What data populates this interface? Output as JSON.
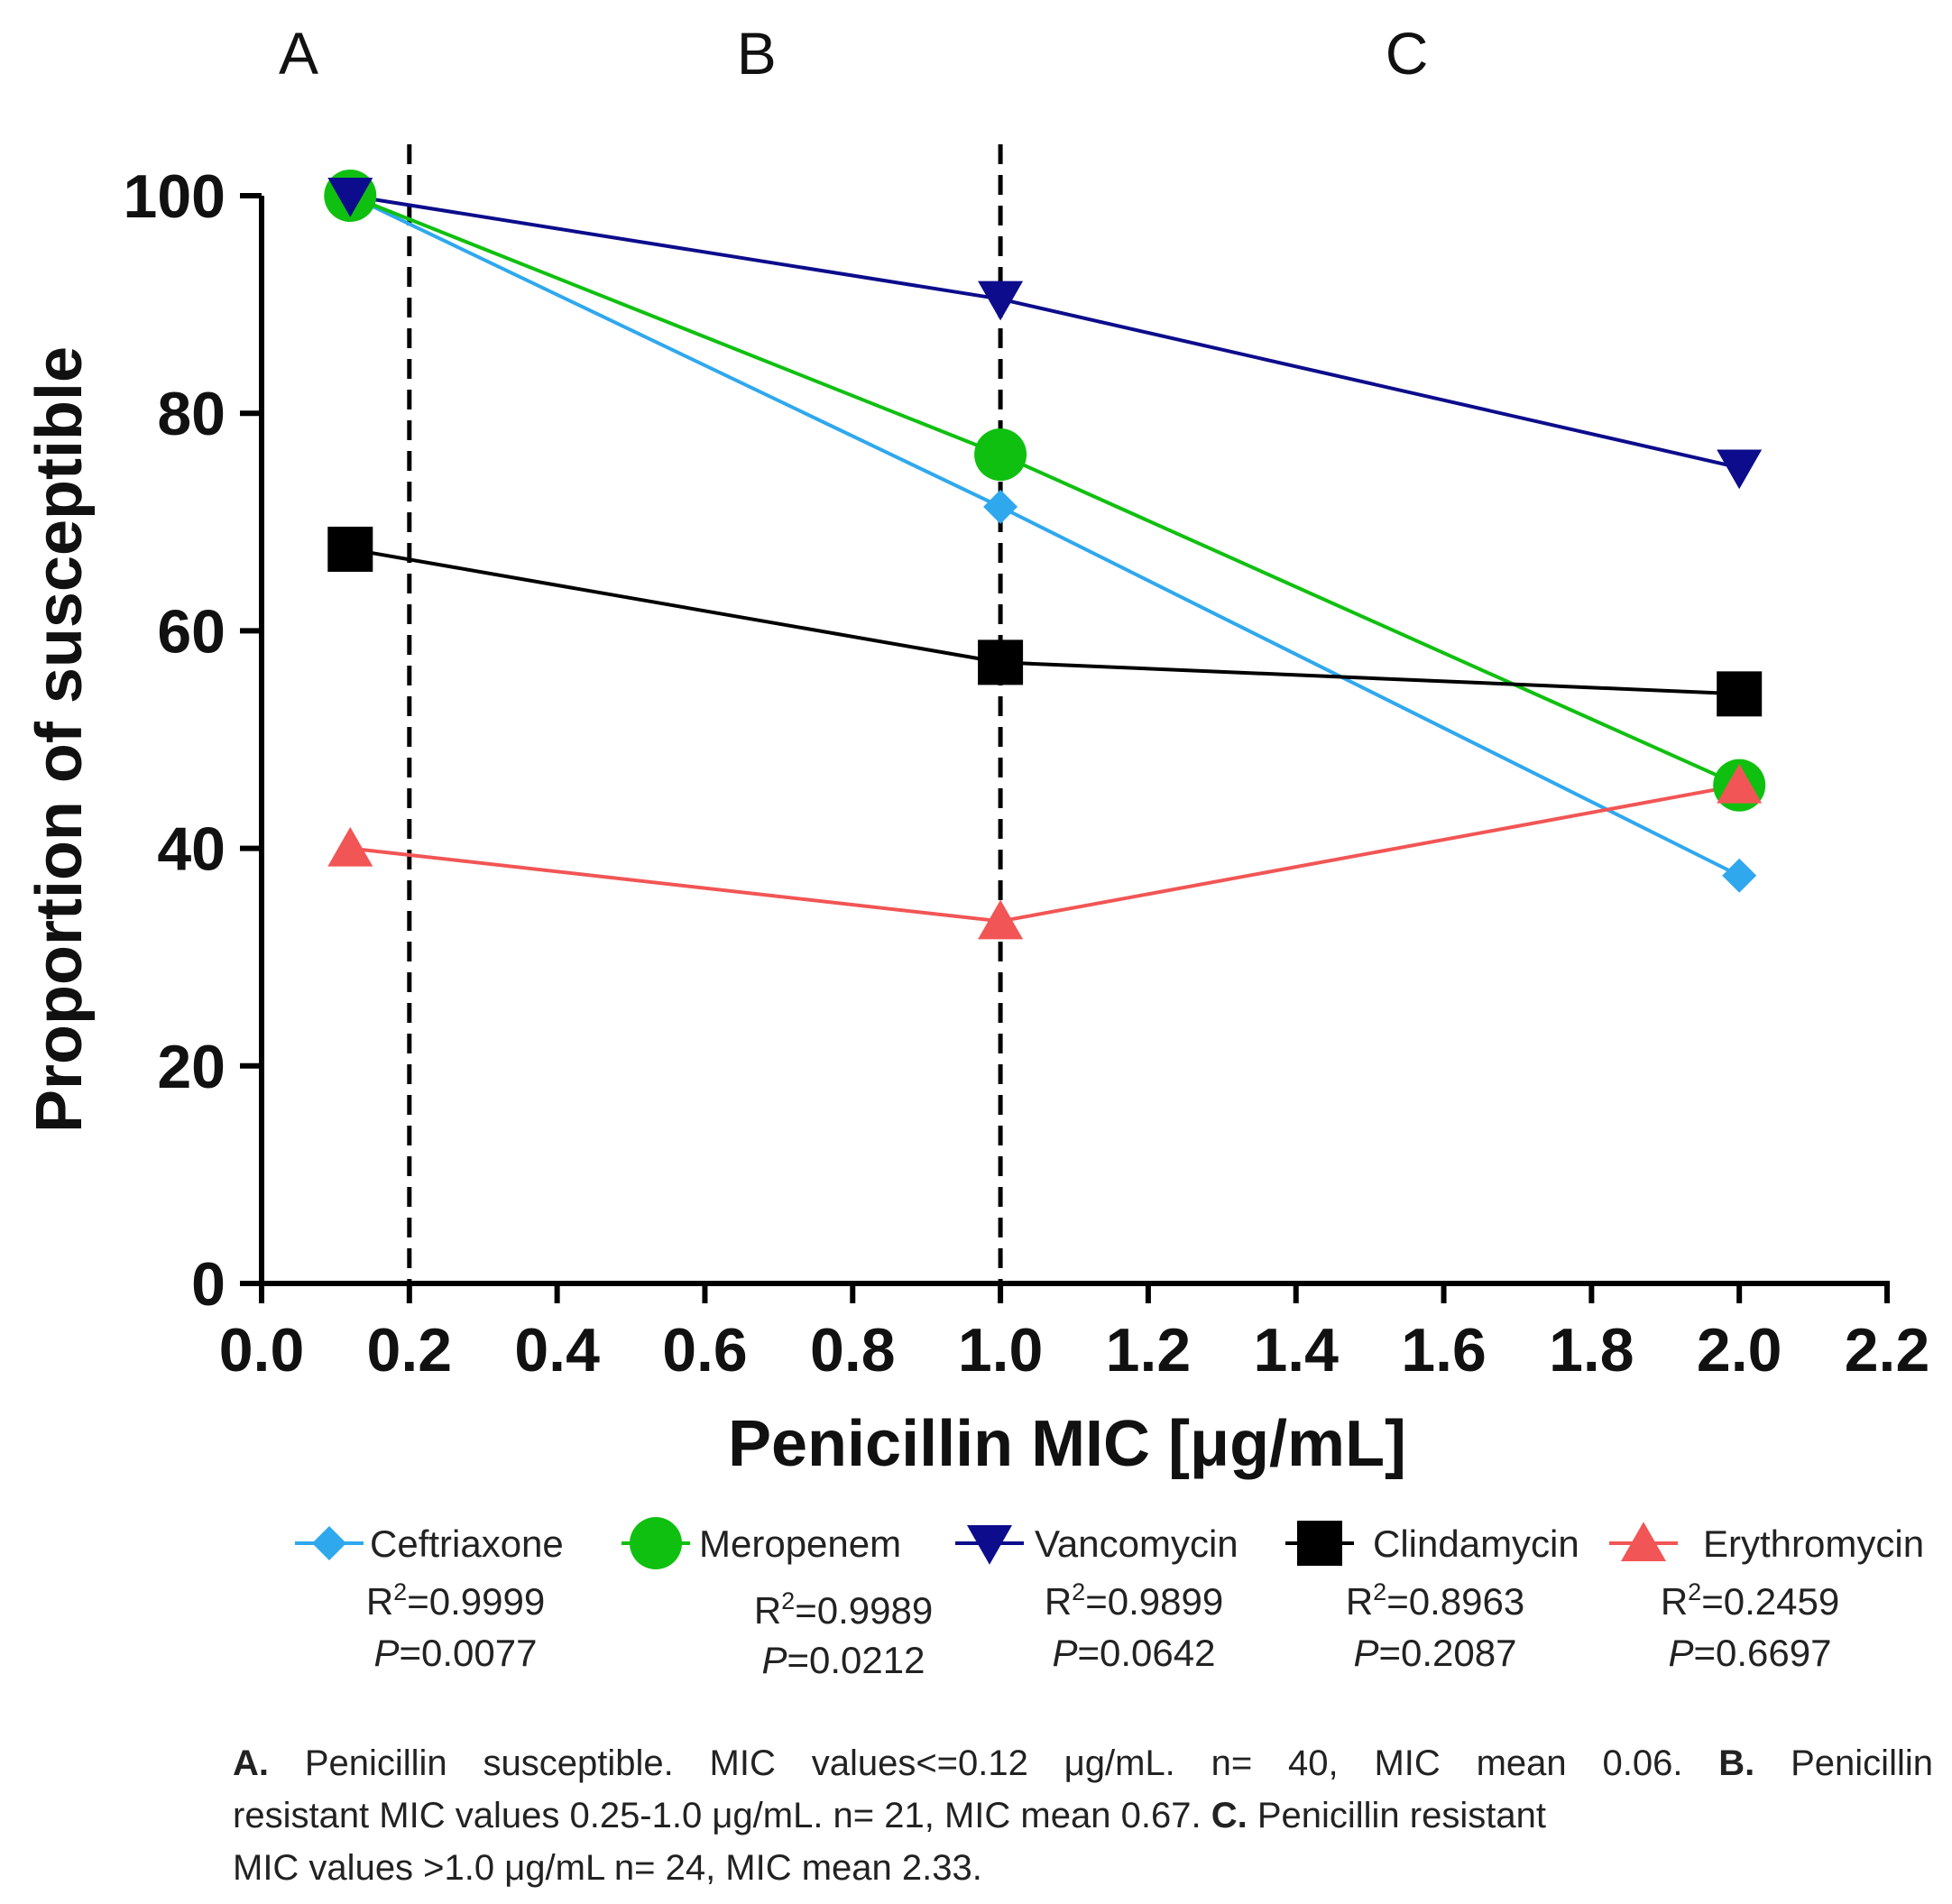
{
  "chart_data": {
    "type": "line",
    "xlabel": "Penicillin MIC [μg/mL]",
    "ylabel": "Proportion of susceptible",
    "xlim": [
      0.0,
      2.2
    ],
    "ylim": [
      0,
      100
    ],
    "x_ticks": [
      "0.0",
      "0.2",
      "0.4",
      "0.6",
      "0.8",
      "1.0",
      "1.2",
      "1.4",
      "1.6",
      "1.8",
      "2.0",
      "2.2"
    ],
    "y_ticks": [
      "0",
      "20",
      "40",
      "60",
      "80",
      "100"
    ],
    "region_boundaries": [
      0.2,
      1.0
    ],
    "region_labels": [
      {
        "label": "A",
        "x": 0.05
      },
      {
        "label": "B",
        "x": 0.67
      },
      {
        "label": "C",
        "x": 1.55
      }
    ],
    "x": [
      0.12,
      1.0,
      2.0
    ],
    "series": [
      {
        "name": "Ceftriaxone",
        "marker": "diamond",
        "color": "#2fa8ee",
        "values": [
          100,
          71.4,
          37.5
        ],
        "r2": "0.9999",
        "p": "0.0077"
      },
      {
        "name": "Meropenem",
        "marker": "circle",
        "color": "#10c010",
        "values": [
          100,
          76.2,
          45.8
        ],
        "r2": "0.9989",
        "p": "0.0212"
      },
      {
        "name": "Vancomycin",
        "marker": "triangle-down",
        "color": "#0c0c8c",
        "values": [
          100,
          90.5,
          75.0
        ],
        "r2": "0.9899",
        "p": "0.0642"
      },
      {
        "name": "Clindamycin",
        "marker": "square",
        "color": "#000000",
        "values": [
          67.5,
          57.1,
          54.2
        ],
        "r2": "0.8963",
        "p": "0.2087"
      },
      {
        "name": "Erythromycin",
        "marker": "triangle-up",
        "color": "#f25555",
        "values": [
          40.0,
          33.3,
          45.8
        ],
        "r2": "0.2459",
        "p": "0.6697"
      }
    ]
  },
  "stats": {
    "r_prefix": "R",
    "r_sup": "2",
    "p_prefix": "P",
    "eq": "="
  },
  "caption": {
    "a_label": "A.",
    "a_text": "Penicillin susceptible. MIC values<=0.12 μg/mL. n= 40, MIC mean 0.06.",
    "b_label": "B.",
    "b_text_1": "Penicillin",
    "b_text_2": "resistant MIC values 0.25-1.0 μg/mL. n= 21, MIC mean 0.67.",
    "c_label": "C.",
    "c_text_1": "Penicillin resistant",
    "c_text_2": "MIC values >1.0 μg/mL n= 24, MIC mean 2.33."
  }
}
